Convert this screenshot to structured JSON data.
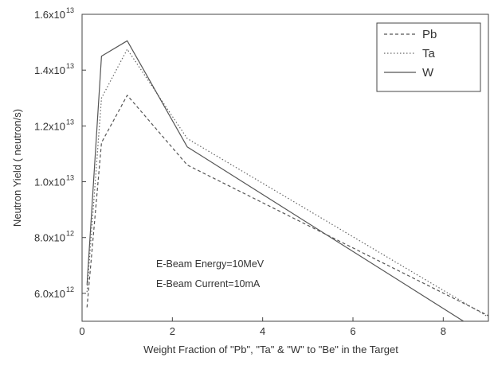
{
  "chart_data": {
    "type": "line",
    "title": "",
    "xlabel": "Weight Fraction of \"Pb\", \"Ta\" & \"W\" to \"Be\" in the Target",
    "ylabel": "Neutron Yield  ( neutron/s)",
    "xlim": [
      0,
      9
    ],
    "ylim": [
      5000000000000.0,
      16000000000000.0
    ],
    "x_ticks": [
      0,
      2,
      4,
      6,
      8
    ],
    "x_tick_labels": [
      "0",
      "2",
      "4",
      "6",
      "8"
    ],
    "y_ticks": [
      6000000000000.0,
      8000000000000.0,
      10000000000000.0,
      12000000000000.0,
      14000000000000.0,
      16000000000000.0
    ],
    "y_tick_mantissas": [
      "6.0x10",
      "8.0x10",
      "1.0x10",
      "1.2x10",
      "1.4x10",
      "1.6x10"
    ],
    "y_tick_exponents": [
      "12",
      "12",
      "13",
      "13",
      "13",
      "13"
    ],
    "grid": false,
    "legend_position": "top-right",
    "series": [
      {
        "name": "Pb",
        "line_style": "dashed",
        "color": "#555555",
        "points": [
          [
            0.11,
            5500000000000.0
          ],
          [
            0.43,
            11400000000000.0
          ],
          [
            1.0,
            13100000000000.0
          ],
          [
            2.33,
            10600000000000.0
          ],
          [
            9.0,
            5200000000000.0
          ]
        ]
      },
      {
        "name": "Ta",
        "line_style": "dotted",
        "color": "#666666",
        "points": [
          [
            0.11,
            6050000000000.0
          ],
          [
            0.43,
            13000000000000.0
          ],
          [
            1.0,
            14750000000000.0
          ],
          [
            2.33,
            11550000000000.0
          ],
          [
            9.0,
            5150000000000.0
          ]
        ]
      },
      {
        "name": "W",
        "line_style": "solid",
        "color": "#555555",
        "points": [
          [
            0.11,
            6300000000000.0
          ],
          [
            0.43,
            14500000000000.0
          ],
          [
            1.0,
            15050000000000.0
          ],
          [
            2.33,
            11250000000000.0
          ],
          [
            8.45,
            5000000000000.0
          ]
        ]
      }
    ],
    "annotations": [
      "E-Beam Energy=10MeV",
      "E-Beam Current=10mA"
    ]
  }
}
